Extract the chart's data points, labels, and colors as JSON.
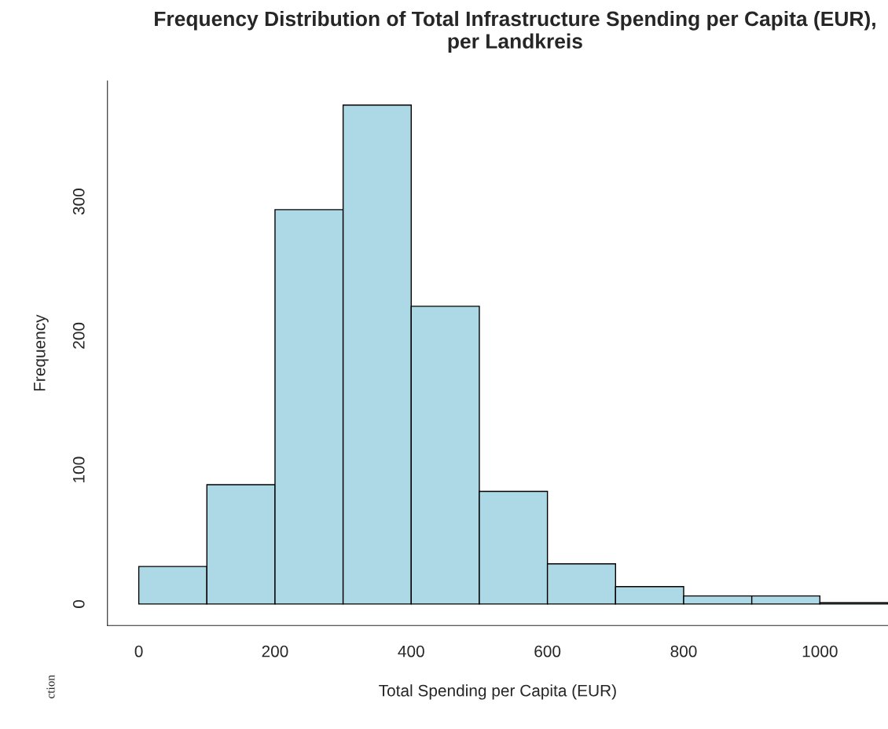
{
  "chart_data": {
    "type": "histogram",
    "title": "Frequency Distribution of Total Infrastructure Spending per Capita (EUR), per Landkreis",
    "xlabel": "Total Spending per Capita (EUR)",
    "ylabel": "Frequency",
    "bins": [
      0,
      100,
      200,
      300,
      400,
      500,
      600,
      700,
      800,
      900,
      1000,
      1100
    ],
    "values": [
      28,
      89,
      294,
      372,
      222,
      84,
      30,
      13,
      6,
      6,
      1
    ],
    "color": "#add8e6",
    "xlim": [
      -46,
      1100
    ],
    "ylim": [
      -16,
      390
    ],
    "xticks": [
      0,
      200,
      400,
      600,
      800,
      1000
    ],
    "yticks": [
      0,
      100,
      200,
      300
    ],
    "annotations": [
      "ction"
    ]
  }
}
